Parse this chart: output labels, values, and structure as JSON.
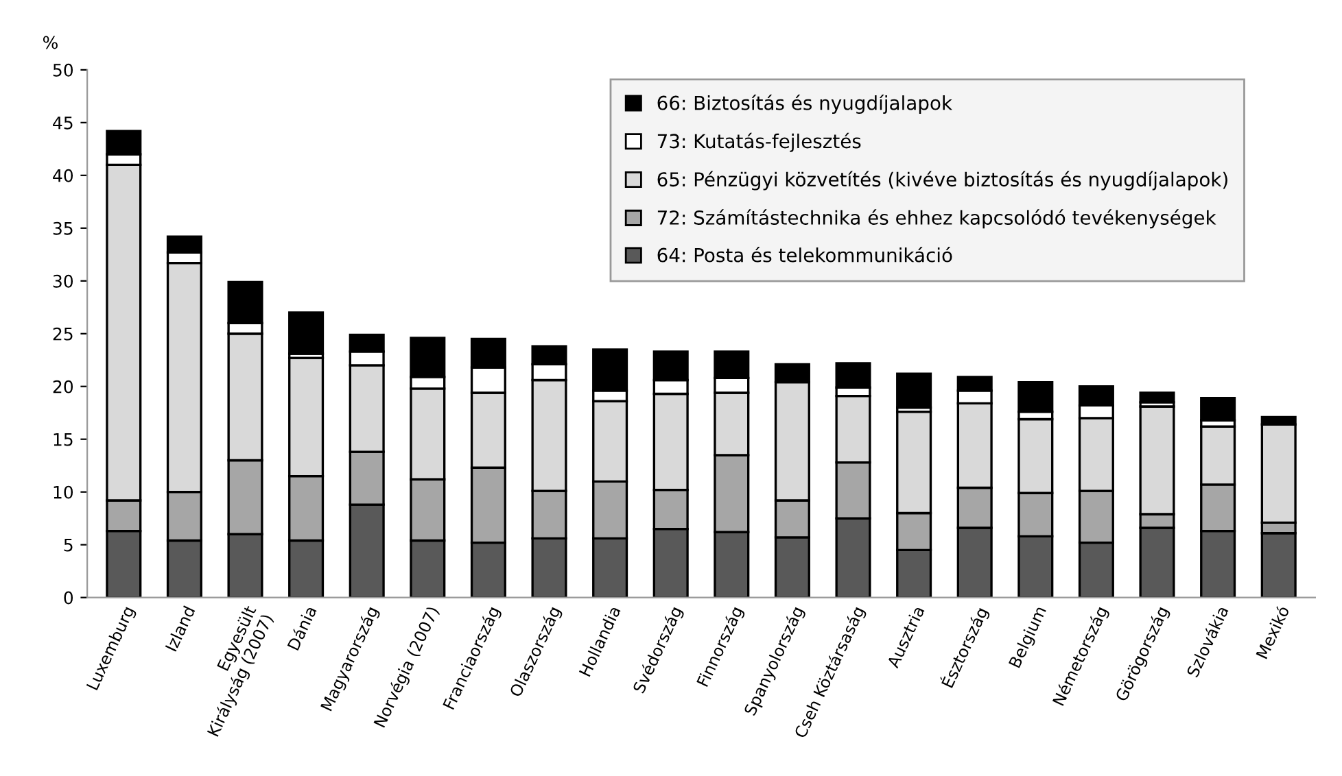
{
  "chart_data": {
    "type": "bar",
    "stacked": true,
    "ylabel": "%",
    "categories": [
      "Luxemburg",
      "Izland",
      "Egyesült\nKirályság (2007)",
      "Dánia",
      "Magyarország",
      "Norvégia (2007)",
      "Franciaország",
      "Olaszország",
      "Hollandia",
      "Svédország",
      "Finnország",
      "Spanyolország",
      "Cseh Köztársaság",
      "Ausztria",
      "Észtország",
      "Belgium",
      "Németország",
      "Görögország",
      "Szlovákia",
      "Mexikó"
    ],
    "series": [
      {
        "name": "64: Posta és telekommunikáció",
        "color": "#595959",
        "values": [
          6.3,
          5.4,
          6.0,
          5.4,
          8.8,
          5.4,
          5.2,
          5.6,
          5.6,
          6.5,
          6.2,
          5.7,
          7.5,
          4.5,
          6.6,
          5.8,
          5.2,
          6.6,
          6.3,
          6.1
        ]
      },
      {
        "name": "72: Számítástechnika és ehhez kapcsolódó tevékenységek",
        "color": "#a6a6a6",
        "values": [
          2.9,
          4.6,
          7.0,
          6.1,
          5.0,
          5.8,
          7.1,
          4.5,
          5.4,
          3.7,
          7.3,
          3.5,
          5.3,
          3.5,
          3.8,
          4.1,
          4.9,
          1.3,
          4.4,
          1.0
        ]
      },
      {
        "name": "65: Pénzügyi közvetítés (kivéve biztosítás és nyugdíjalapok)",
        "color": "#d9d9d9",
        "values": [
          31.8,
          21.7,
          12.0,
          11.2,
          8.2,
          8.6,
          7.1,
          10.5,
          7.6,
          9.1,
          5.9,
          11.2,
          6.3,
          9.6,
          8.0,
          7.0,
          6.9,
          10.2,
          5.5,
          9.3
        ]
      },
      {
        "name": "73: Kutatás-fejlesztés",
        "color": "#ffffff",
        "values": [
          1.0,
          1.0,
          1.0,
          0.4,
          1.3,
          1.1,
          2.4,
          1.5,
          1.0,
          1.3,
          1.4,
          null,
          0.8,
          0.4,
          1.2,
          0.7,
          1.2,
          0.4,
          0.6,
          null
        ]
      },
      {
        "name": "66: Biztosítás és nyugdíjalapok",
        "color": "#000000",
        "values": [
          2.2,
          1.5,
          3.9,
          3.9,
          1.6,
          3.7,
          2.7,
          1.7,
          3.9,
          2.7,
          2.5,
          1.7,
          2.3,
          3.2,
          1.3,
          2.8,
          1.8,
          0.9,
          2.1,
          0.7
        ]
      }
    ],
    "ylim": [
      0,
      50
    ],
    "yticks": [
      0,
      5,
      10,
      15,
      20,
      25,
      30,
      35,
      40,
      45,
      50
    ],
    "grid": false,
    "legend": "top right"
  }
}
